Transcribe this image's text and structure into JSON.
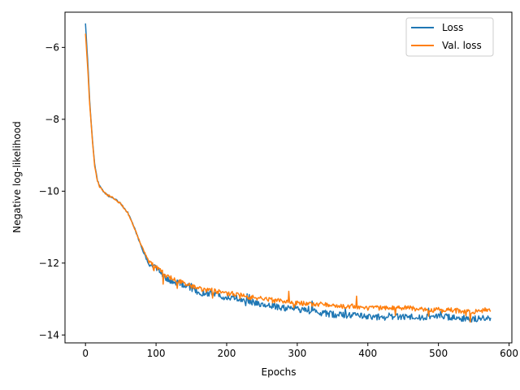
{
  "chart_data": {
    "type": "line",
    "title": "",
    "xlabel": "Epochs",
    "ylabel": "Negative log-likelihood",
    "xlim": [
      -29,
      604
    ],
    "ylim": [
      -14.22,
      -5.02
    ],
    "xticks": [
      0,
      100,
      200,
      300,
      400,
      500,
      600
    ],
    "xtick_labels": [
      "0",
      "100",
      "200",
      "300",
      "400",
      "500",
      "600"
    ],
    "yticks": [
      -6,
      -8,
      -10,
      -12,
      -14
    ],
    "ytick_labels": [
      "−6",
      "−8",
      "−10",
      "−12",
      "−14"
    ],
    "grid": false,
    "legend_position": "top-right",
    "series": [
      {
        "name": "Loss",
        "color": "#1f77b4",
        "x": [
          0,
          3,
          6,
          10,
          13,
          17,
          20,
          25,
          30,
          40,
          50,
          60,
          70,
          80,
          90,
          100,
          110,
          120,
          130,
          140,
          150,
          160,
          170,
          180,
          190,
          200,
          210,
          220,
          230,
          240,
          250,
          260,
          270,
          280,
          290,
          300,
          320,
          340,
          360,
          380,
          400,
          420,
          440,
          460,
          480,
          500,
          520,
          540,
          560,
          565,
          574
        ],
        "y": [
          -5.35,
          -6.3,
          -7.5,
          -8.6,
          -9.25,
          -9.7,
          -9.85,
          -10.0,
          -10.1,
          -10.2,
          -10.35,
          -10.6,
          -11.05,
          -11.6,
          -12.05,
          -12.15,
          -12.35,
          -12.5,
          -12.55,
          -12.6,
          -12.7,
          -12.8,
          -12.85,
          -12.85,
          -12.9,
          -12.95,
          -12.95,
          -13.0,
          -13.05,
          -13.1,
          -13.15,
          -13.2,
          -13.2,
          -13.25,
          -13.25,
          -13.3,
          -13.35,
          -13.4,
          -13.45,
          -13.45,
          -13.5,
          -13.5,
          -13.5,
          -13.5,
          -13.5,
          -13.5,
          -13.5,
          -13.55,
          -13.55,
          -13.5,
          -13.55
        ]
      },
      {
        "name": "Val. loss",
        "color": "#ff7f0e",
        "x": [
          0,
          3,
          6,
          10,
          13,
          17,
          20,
          25,
          30,
          40,
          50,
          60,
          70,
          80,
          90,
          100,
          110,
          120,
          130,
          140,
          150,
          160,
          170,
          180,
          190,
          200,
          210,
          220,
          230,
          240,
          250,
          260,
          270,
          280,
          290,
          300,
          320,
          340,
          360,
          380,
          400,
          420,
          440,
          460,
          480,
          500,
          520,
          540,
          560,
          565,
          574
        ],
        "y": [
          -5.6,
          -6.5,
          -7.6,
          -8.65,
          -9.3,
          -9.72,
          -9.87,
          -10.0,
          -10.1,
          -10.2,
          -10.35,
          -10.6,
          -11.05,
          -11.55,
          -11.95,
          -12.1,
          -12.25,
          -12.4,
          -12.5,
          -12.55,
          -12.65,
          -12.7,
          -12.75,
          -12.75,
          -12.8,
          -12.85,
          -12.85,
          -12.9,
          -12.95,
          -12.95,
          -13.0,
          -13.0,
          -13.05,
          -13.05,
          -13.1,
          -13.1,
          -13.15,
          -13.15,
          -13.2,
          -13.2,
          -13.25,
          -13.25,
          -13.25,
          -13.25,
          -13.3,
          -13.3,
          -13.3,
          -13.35,
          -13.35,
          -13.3,
          -13.3
        ]
      }
    ]
  }
}
